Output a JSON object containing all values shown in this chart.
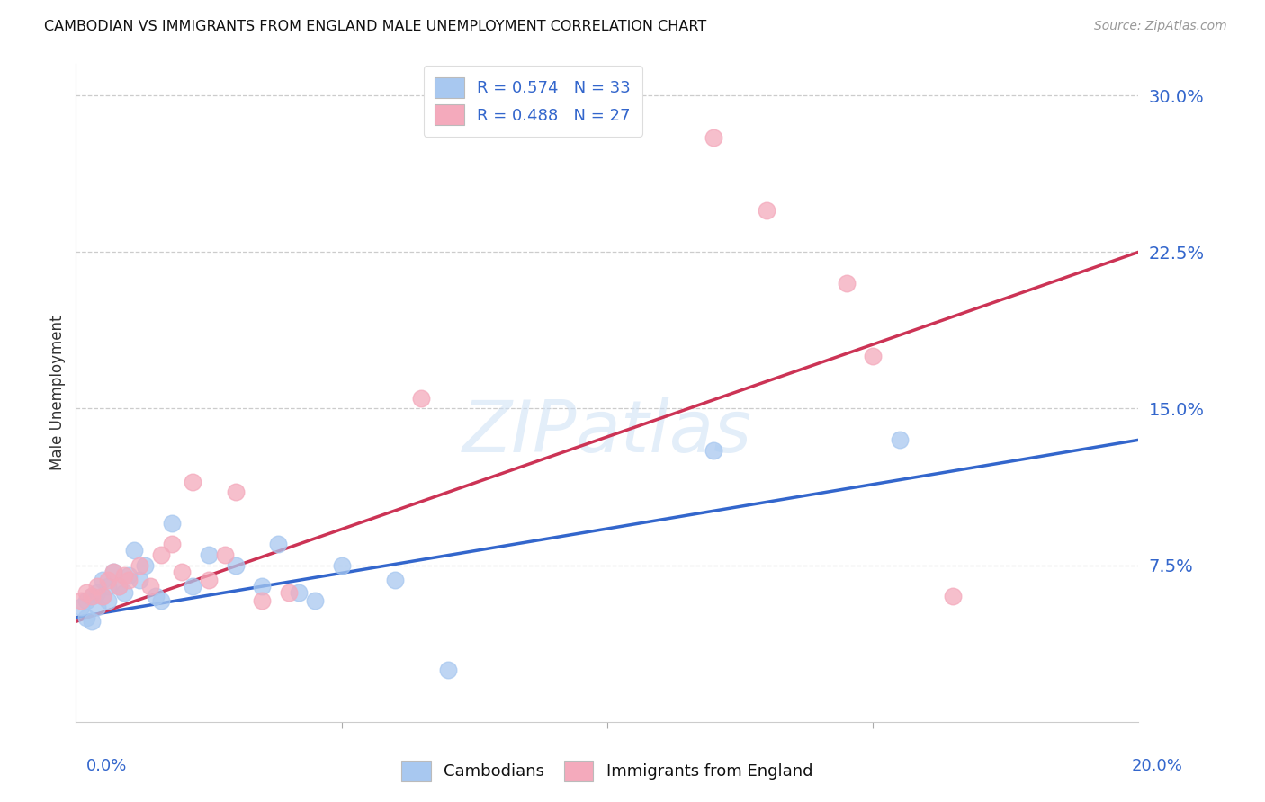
{
  "title": "CAMBODIAN VS IMMIGRANTS FROM ENGLAND MALE UNEMPLOYMENT CORRELATION CHART",
  "source": "Source: ZipAtlas.com",
  "ylabel": "Male Unemployment",
  "ytick_labels": [
    "7.5%",
    "15.0%",
    "22.5%",
    "30.0%"
  ],
  "ytick_values": [
    0.075,
    0.15,
    0.225,
    0.3
  ],
  "xlim": [
    0.0,
    0.2
  ],
  "ylim": [
    0.0,
    0.315
  ],
  "blue_color": "#A8C8F0",
  "blue_line_color": "#3366CC",
  "pink_color": "#F4AABC",
  "pink_line_color": "#CC3355",
  "legend_text_color": "#3366CC",
  "blue_R": "0.574",
  "blue_N": "33",
  "pink_R": "0.488",
  "pink_N": "27",
  "cambodian_x": [
    0.001,
    0.002,
    0.002,
    0.003,
    0.003,
    0.004,
    0.004,
    0.005,
    0.005,
    0.006,
    0.006,
    0.007,
    0.008,
    0.009,
    0.01,
    0.011,
    0.012,
    0.013,
    0.015,
    0.016,
    0.018,
    0.022,
    0.025,
    0.03,
    0.035,
    0.038,
    0.042,
    0.045,
    0.05,
    0.06,
    0.07,
    0.12,
    0.155
  ],
  "cambodian_y": [
    0.055,
    0.058,
    0.05,
    0.06,
    0.048,
    0.062,
    0.055,
    0.068,
    0.06,
    0.065,
    0.058,
    0.072,
    0.065,
    0.062,
    0.07,
    0.082,
    0.068,
    0.075,
    0.06,
    0.058,
    0.095,
    0.065,
    0.08,
    0.075,
    0.065,
    0.085,
    0.062,
    0.058,
    0.075,
    0.068,
    0.025,
    0.13,
    0.135
  ],
  "england_x": [
    0.001,
    0.002,
    0.003,
    0.004,
    0.005,
    0.006,
    0.007,
    0.008,
    0.009,
    0.01,
    0.012,
    0.014,
    0.016,
    0.018,
    0.02,
    0.022,
    0.025,
    0.028,
    0.03,
    0.035,
    0.04,
    0.065,
    0.12,
    0.13,
    0.145,
    0.15,
    0.165
  ],
  "england_y": [
    0.058,
    0.062,
    0.06,
    0.065,
    0.06,
    0.068,
    0.072,
    0.065,
    0.07,
    0.068,
    0.075,
    0.065,
    0.08,
    0.085,
    0.072,
    0.115,
    0.068,
    0.08,
    0.11,
    0.058,
    0.062,
    0.155,
    0.28,
    0.245,
    0.21,
    0.175,
    0.06
  ],
  "blue_line_x0": 0.0,
  "blue_line_y0": 0.05,
  "blue_line_x1": 0.2,
  "blue_line_y1": 0.135,
  "pink_line_x0": 0.0,
  "pink_line_y0": 0.048,
  "pink_line_x1": 0.2,
  "pink_line_y1": 0.225
}
